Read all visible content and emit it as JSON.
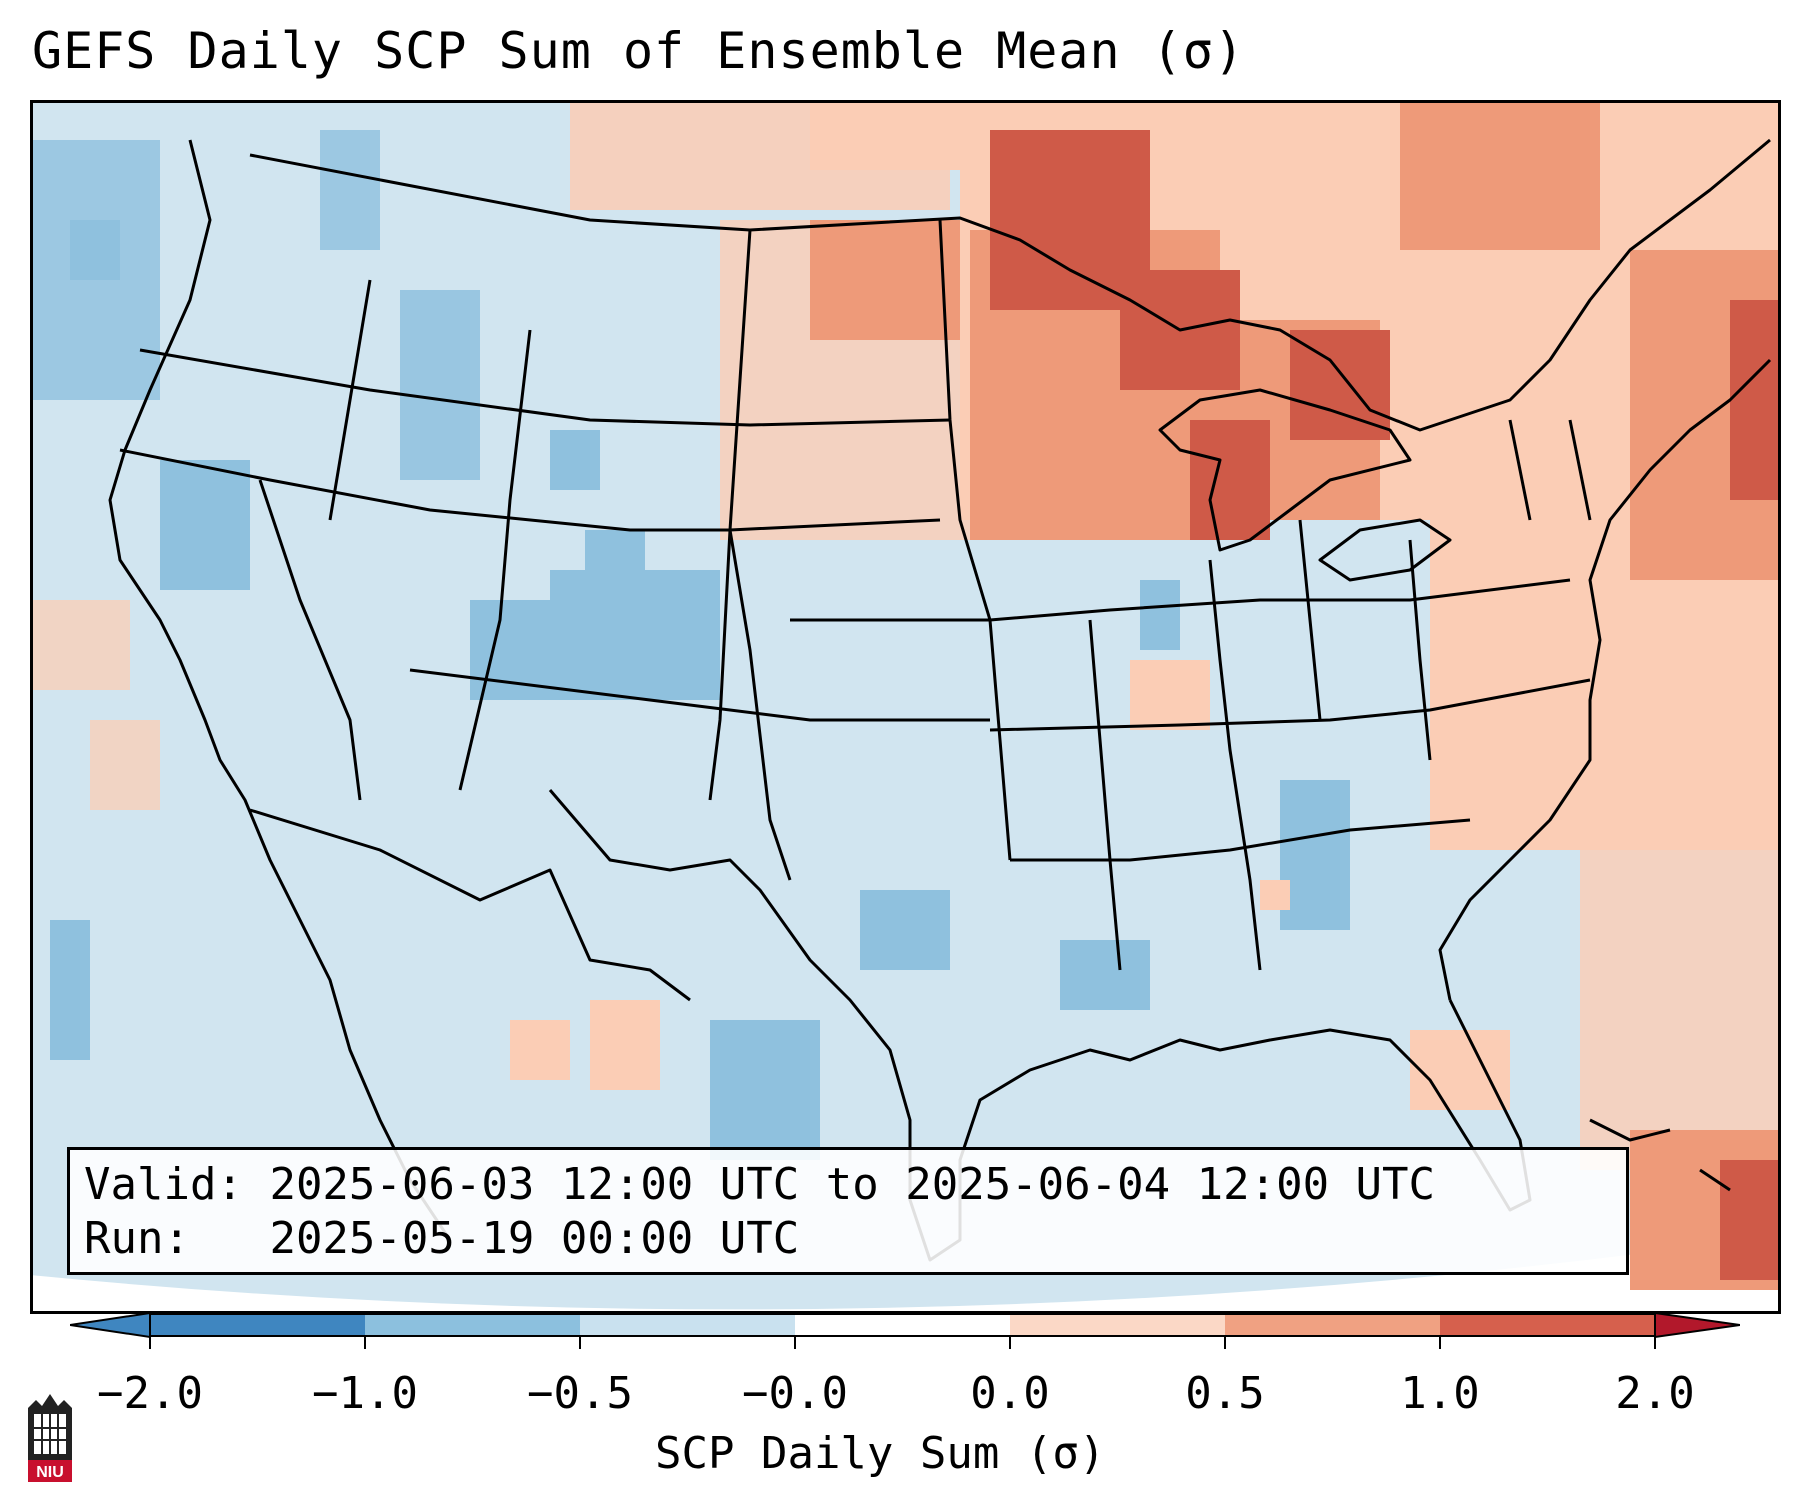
{
  "title": "GEFS Daily SCP Sum of Ensemble Mean (σ)",
  "info": {
    "valid_label": "Valid:",
    "valid_value": "2025-06-03 12:00 UTC to 2025-06-04 12:00 UTC",
    "run_label": "Run:",
    "run_value": "2025-05-19 00:00 UTC"
  },
  "colorbar": {
    "label": "SCP Daily Sum (σ)",
    "ticks": [
      "−2.0",
      "−1.0",
      "−0.5",
      "−0.0",
      "0.0",
      "0.5",
      "1.0",
      "2.0"
    ],
    "colors": [
      "#3f86c0",
      "#8cc0de",
      "#c9e1ef",
      "#ffffff",
      "#fbd8c6",
      "#f0a182",
      "#d6604d",
      "#b2182b"
    ]
  },
  "map": {
    "ocean_color": "#d4e6f1",
    "land_base_color": "#d1e5f0",
    "region": "Contiguous United States"
  },
  "logo": {
    "text": "NIU",
    "color": "#c8102e"
  }
}
